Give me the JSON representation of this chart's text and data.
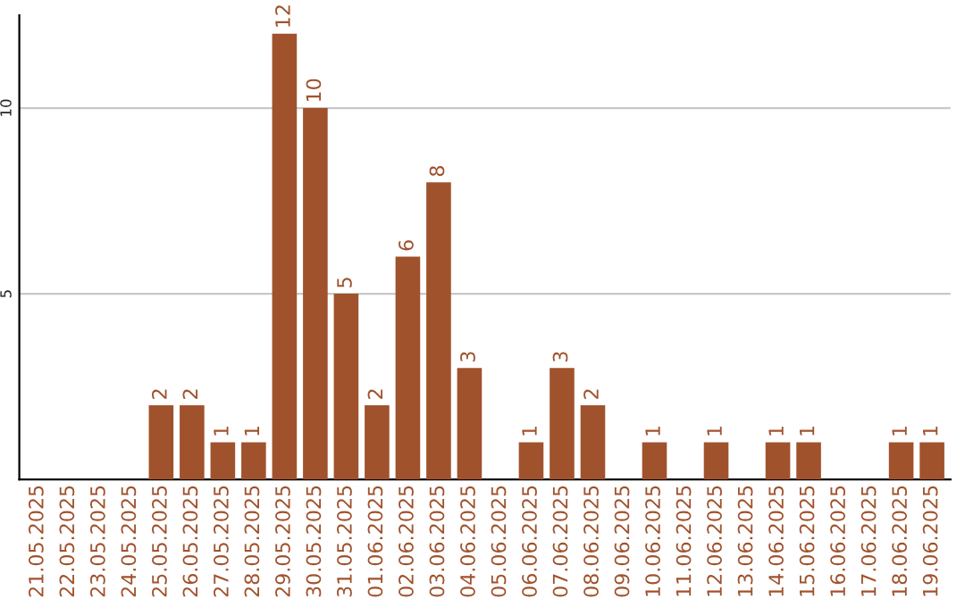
{
  "chart_data": {
    "type": "bar",
    "categories": [
      "21.05.2025",
      "22.05.2025",
      "23.05.2025",
      "24.05.2025",
      "25.05.2025",
      "26.05.2025",
      "27.05.2025",
      "28.05.2025",
      "29.05.2025",
      "30.05.2025",
      "31.05.2025",
      "01.06.2025",
      "02.06.2025",
      "03.06.2025",
      "04.06.2025",
      "05.06.2025",
      "06.06.2025",
      "07.06.2025",
      "08.06.2025",
      "09.06.2025",
      "10.06.2025",
      "11.06.2025",
      "12.06.2025",
      "13.06.2025",
      "14.06.2025",
      "15.06.2025",
      "16.06.2025",
      "17.06.2025",
      "18.06.2025",
      "19.06.2025"
    ],
    "values": [
      0,
      0,
      0,
      0,
      2,
      2,
      1,
      1,
      12,
      10,
      5,
      2,
      6,
      8,
      3,
      0,
      1,
      3,
      2,
      0,
      1,
      0,
      1,
      0,
      1,
      1,
      0,
      0,
      1,
      1
    ],
    "value_labels": [
      null,
      null,
      null,
      null,
      "2",
      "2",
      "1",
      "1",
      "12",
      "10",
      "5",
      "2",
      "6",
      "8",
      "3",
      null,
      "1",
      "3",
      "2",
      null,
      "1",
      null,
      "1",
      null,
      "1",
      "1",
      null,
      null,
      "1",
      "1"
    ],
    "color": "#a0522d",
    "ylim": [
      0,
      12.5
    ],
    "yticks": [
      5,
      10
    ],
    "grid": "y",
    "legend": false
  }
}
